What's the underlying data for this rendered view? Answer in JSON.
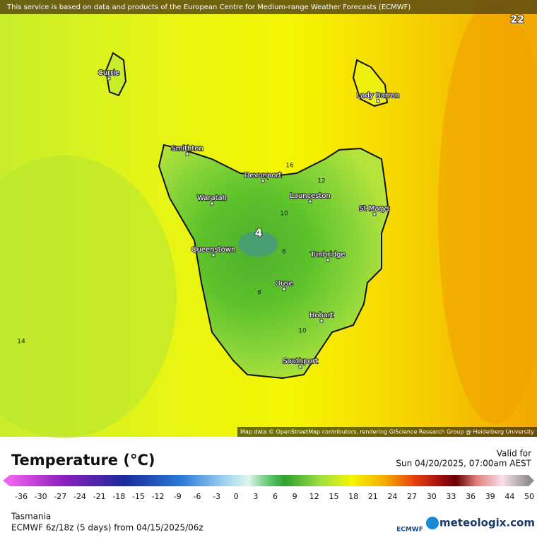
{
  "banner": "This service is based on data and products of the European Centre for Medium-range Weather Forecasts (ECMWF)",
  "map_labels": {
    "corner_value": "22",
    "left_value": "14",
    "contours": [
      "16",
      "12",
      "10",
      "4",
      "6",
      "8",
      "10"
    ]
  },
  "cities": [
    "Currie",
    "Lady Barron",
    "Smithton",
    "Devonport",
    "Launceston",
    "Waratah",
    "St Marys",
    "Queenstown",
    "Tunbridge",
    "Ouse",
    "Hobart",
    "Southport"
  ],
  "attribution": "Map data © OpenStreetMap contributors, rendering GIScience Research Group @ Heidelberg University",
  "legend": {
    "title": "Temperature (°C)",
    "valid_label": "Valid for",
    "valid_time": "Sun 04/20/2025, 07:00am AEST",
    "ticks": [
      "-36",
      "-30",
      "-27",
      "-24",
      "-21",
      "-18",
      "-15",
      "-12",
      "-9",
      "-6",
      "-3",
      "0",
      "3",
      "6",
      "9",
      "12",
      "15",
      "18",
      "21",
      "24",
      "27",
      "30",
      "33",
      "36",
      "39",
      "44",
      "50"
    ]
  },
  "footer": {
    "region": "Tasmania",
    "model": "ECMWF 6z/18z (5 days) from 04/15/2025/06z",
    "ecmwf_logo": "ECMWF",
    "brand": "meteologix.com"
  }
}
